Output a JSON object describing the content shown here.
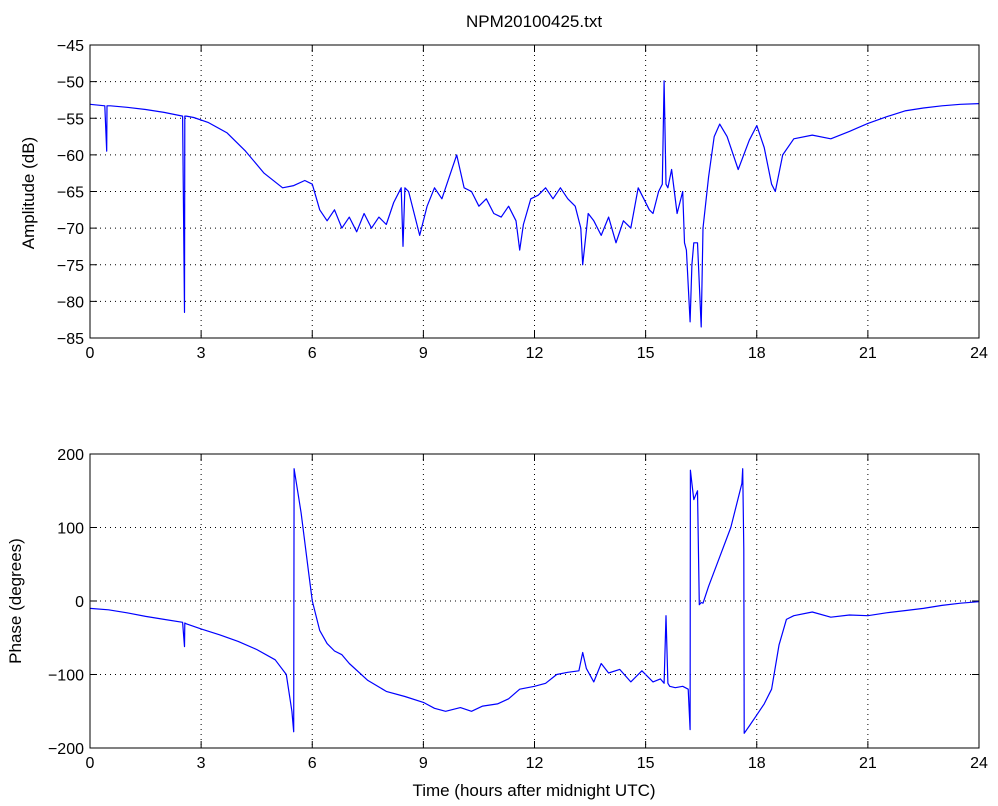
{
  "title": "NPM20100425.txt",
  "chart_data": [
    {
      "type": "line",
      "title": "NPM20100425.txt",
      "xlabel": "",
      "ylabel": "Amplitude (dB)",
      "xlim": [
        0,
        24
      ],
      "ylim": [
        -85,
        -45
      ],
      "xticks": [
        0,
        3,
        6,
        9,
        12,
        15,
        18,
        21,
        24
      ],
      "yticks": [
        -45,
        -50,
        -55,
        -60,
        -65,
        -70,
        -75,
        -80,
        -85
      ],
      "grid": true,
      "line_color": "#0000ff",
      "series": [
        {
          "x": [
            0,
            0.4,
            0.45,
            0.46,
            0.5,
            0.55,
            1.0,
            1.5,
            2.0,
            2.5,
            2.55,
            2.56,
            2.6,
            2.8,
            3.2,
            3.7,
            4.2,
            4.7,
            5.2,
            5.5,
            5.8,
            6.0,
            6.2,
            6.4,
            6.6,
            6.8,
            7.0,
            7.2,
            7.4,
            7.6,
            7.8,
            8.0,
            8.2,
            8.4,
            8.45,
            8.5,
            8.6,
            8.9,
            9.1,
            9.3,
            9.5,
            9.7,
            9.9,
            10.1,
            10.3,
            10.5,
            10.7,
            10.9,
            11.1,
            11.3,
            11.5,
            11.6,
            11.7,
            11.9,
            12.1,
            12.3,
            12.5,
            12.7,
            12.9,
            13.1,
            13.25,
            13.3,
            13.45,
            13.6,
            13.8,
            14.0,
            14.2,
            14.4,
            14.6,
            14.8,
            14.95,
            15.1,
            15.2,
            15.35,
            15.45,
            15.5,
            15.55,
            15.6,
            15.7,
            15.85,
            16.0,
            16.05,
            16.1,
            16.2,
            16.25,
            16.3,
            16.4,
            16.5,
            16.55,
            16.7,
            16.85,
            17.0,
            17.2,
            17.5,
            17.8,
            18.0,
            18.2,
            18.4,
            18.5,
            18.7,
            19.0,
            19.5,
            20.0,
            20.5,
            21.0,
            21.5,
            22.0,
            22.5,
            23.0,
            23.5,
            24.0
          ],
          "values": [
            -53.1,
            -53.3,
            -59.5,
            -53.3,
            -53.3,
            -53.3,
            -53.5,
            -53.8,
            -54.2,
            -54.7,
            -81.5,
            -54.7,
            -54.7,
            -54.9,
            -55.6,
            -57.0,
            -59.5,
            -62.5,
            -64.5,
            -64.2,
            -63.5,
            -64.0,
            -67.5,
            -69.0,
            -67.5,
            -70.0,
            -68.5,
            -70.5,
            -68.0,
            -70.0,
            -68.5,
            -69.5,
            -66.5,
            -64.5,
            -72.5,
            -64.5,
            -65.0,
            -71.0,
            -67.0,
            -64.5,
            -66.0,
            -63.0,
            -60.0,
            -64.5,
            -65.0,
            -67.0,
            -66.0,
            -68.0,
            -68.5,
            -67.0,
            -69.0,
            -73.0,
            -69.5,
            -66.0,
            -65.5,
            -64.5,
            -66.0,
            -64.5,
            -66.0,
            -67.0,
            -70.0,
            -75.0,
            -68.0,
            -69.0,
            -71.0,
            -68.5,
            -72.0,
            -69.0,
            -70.0,
            -64.5,
            -66.0,
            -67.5,
            -68.0,
            -65.0,
            -64.0,
            -49.9,
            -64.0,
            -64.5,
            -62.0,
            -68.0,
            -65.0,
            -72.0,
            -73.0,
            -82.8,
            -75.0,
            -72.0,
            -72.0,
            -83.5,
            -70.0,
            -63.0,
            -57.5,
            -55.8,
            -57.5,
            -62.0,
            -58.0,
            -56.0,
            -59.0,
            -64.0,
            -65.0,
            -60.0,
            -57.8,
            -57.3,
            -57.8,
            -56.8,
            -55.7,
            -54.8,
            -54.0,
            -53.6,
            -53.3,
            -53.1,
            -53.0
          ]
        }
      ]
    },
    {
      "type": "line",
      "title": "",
      "xlabel": "Time (hours after midnight UTC)",
      "ylabel": "Phase (degrees)",
      "xlim": [
        0,
        24
      ],
      "ylim": [
        -200,
        200
      ],
      "xticks": [
        0,
        3,
        6,
        9,
        12,
        15,
        18,
        21,
        24
      ],
      "yticks": [
        200,
        100,
        0,
        -100,
        -200
      ],
      "grid": true,
      "line_color": "#0000ff",
      "series": [
        {
          "x": [
            0,
            0.5,
            1.0,
            1.5,
            2.0,
            2.5,
            2.55,
            2.56,
            2.6,
            3.0,
            3.5,
            4.0,
            4.5,
            5.0,
            5.3,
            5.45,
            5.5,
            5.51,
            5.7,
            5.9,
            6.0,
            6.2,
            6.4,
            6.6,
            6.8,
            7.0,
            7.5,
            8.0,
            8.5,
            9.0,
            9.3,
            9.6,
            10.0,
            10.3,
            10.6,
            11.0,
            11.3,
            11.6,
            12.0,
            12.3,
            12.6,
            12.9,
            13.2,
            13.3,
            13.4,
            13.6,
            13.8,
            14.0,
            14.3,
            14.6,
            14.9,
            15.2,
            15.4,
            15.5,
            15.55,
            15.6,
            15.65,
            15.8,
            16.0,
            16.15,
            16.2,
            16.21,
            16.25,
            16.3,
            16.4,
            16.45,
            16.5,
            16.55,
            16.7,
            17.0,
            17.3,
            17.6,
            17.62,
            17.65,
            17.66,
            17.8,
            18.0,
            18.2,
            18.4,
            18.6,
            18.8,
            19.0,
            19.5,
            20.0,
            20.5,
            21.0,
            21.5,
            22.0,
            22.5,
            23.0,
            23.5,
            24.0
          ],
          "values": [
            -10,
            -12,
            -16,
            -21,
            -25,
            -29,
            -62,
            -30,
            -31,
            -38,
            -46,
            -55,
            -66,
            -80,
            -100,
            -150,
            -178,
            180,
            120,
            40,
            0,
            -40,
            -58,
            -68,
            -73,
            -85,
            -108,
            -123,
            -130,
            -138,
            -146,
            -150,
            -145,
            -150,
            -143,
            -140,
            -133,
            -120,
            -116,
            -112,
            -100,
            -97,
            -95,
            -70,
            -92,
            -110,
            -85,
            -98,
            -93,
            -110,
            -95,
            -110,
            -106,
            -112,
            -20,
            -112,
            -116,
            -118,
            -116,
            -120,
            -175,
            178,
            160,
            138,
            150,
            -5,
            -2,
            -3,
            20,
            60,
            100,
            160,
            180,
            70,
            -180,
            -170,
            -155,
            -140,
            -120,
            -60,
            -25,
            -20,
            -15,
            -22,
            -19,
            -20,
            -16,
            -13,
            -10,
            -6,
            -3,
            -1
          ]
        }
      ]
    }
  ]
}
